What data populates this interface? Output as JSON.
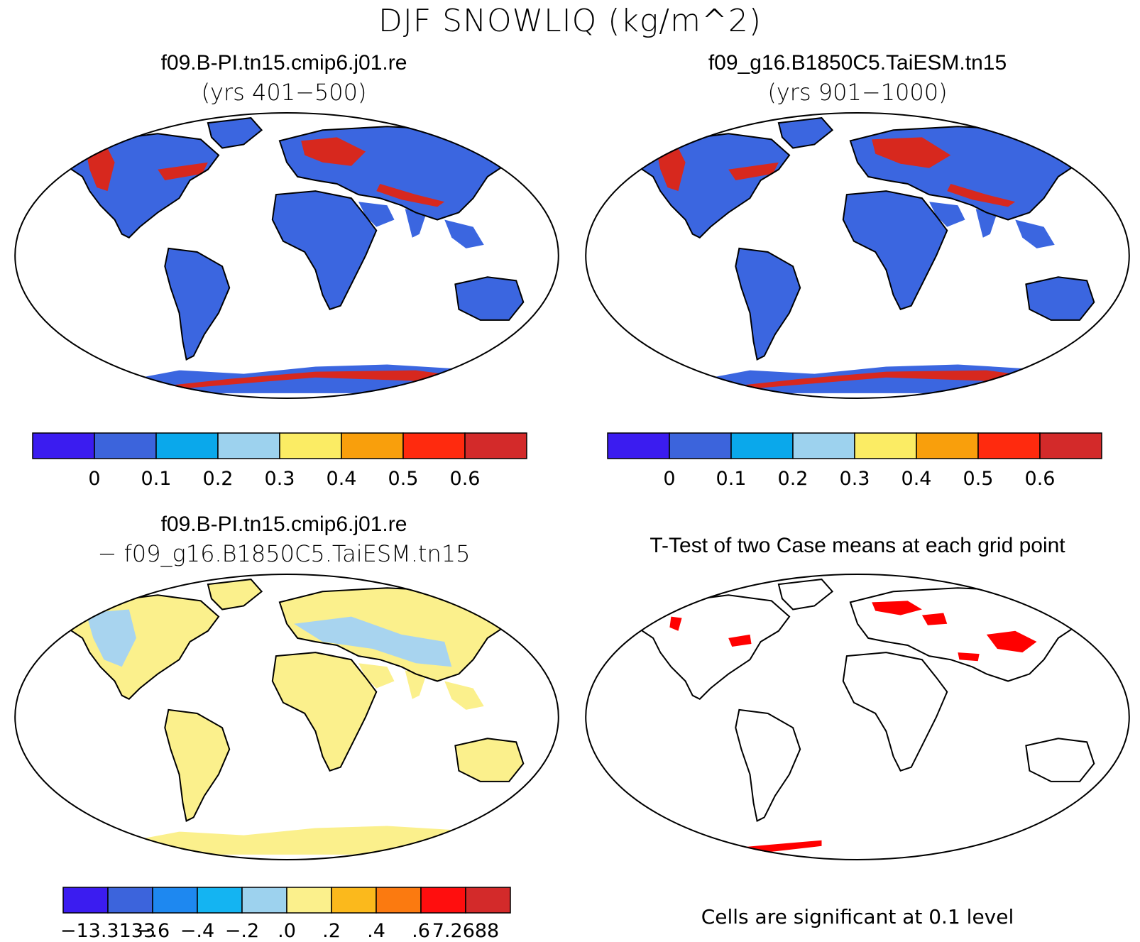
{
  "figure": {
    "title": "DJF SNOWLIQ (kg/m^2)"
  },
  "panels": [
    {
      "id": "case1",
      "title": "f09.B-PI.tn15.cmip6.j01.re",
      "subtitle": "(yrs 401−500)",
      "map_fill": "#3b66e0",
      "hot_fill": "#d7281e"
    },
    {
      "id": "case2",
      "title": "f09_g16.B1850C5.TaiESM.tn15",
      "subtitle": "(yrs 901−1000)",
      "map_fill": "#3b66e0",
      "hot_fill": "#d7281e"
    },
    {
      "id": "diff",
      "title": "f09.B-PI.tn15.cmip6.j01.re",
      "subtitle": "− f09_g16.B1850C5.TaiESM.tn15",
      "map_fill": "#fbf08c",
      "hot_fill": "#a8d4ef"
    },
    {
      "id": "ttest",
      "title": "T-Test of two Case means at each grid point",
      "subtitle": "",
      "map_fill": "#ffffff",
      "hot_fill": "#ff0000"
    }
  ],
  "colorbars": {
    "abs": {
      "colors": [
        "#3b1cf0",
        "#3c64dc",
        "#0aa8eb",
        "#9dd2ee",
        "#fbec64",
        "#f99f0c",
        "#ff2a0e",
        "#d32a2a"
      ],
      "labels": [
        "0",
        "0.1",
        "0.2",
        "0.3",
        "0.4",
        "0.5",
        "0.6"
      ]
    },
    "diff": {
      "colors": [
        "#3b1cf0",
        "#3c64dc",
        "#1e88f0",
        "#14b4f2",
        "#9dd2ee",
        "#fbf08c",
        "#fbb91c",
        "#fb7a10",
        "#ff0e0e",
        "#d32a2a"
      ],
      "labels": [
        "−13.3133",
        "−.6",
        "−.4",
        "−.2",
        ".0",
        ".2",
        ".4",
        ".6",
        "7.2688"
      ]
    }
  },
  "significance_note": "Cells are significant at 0.1 level"
}
